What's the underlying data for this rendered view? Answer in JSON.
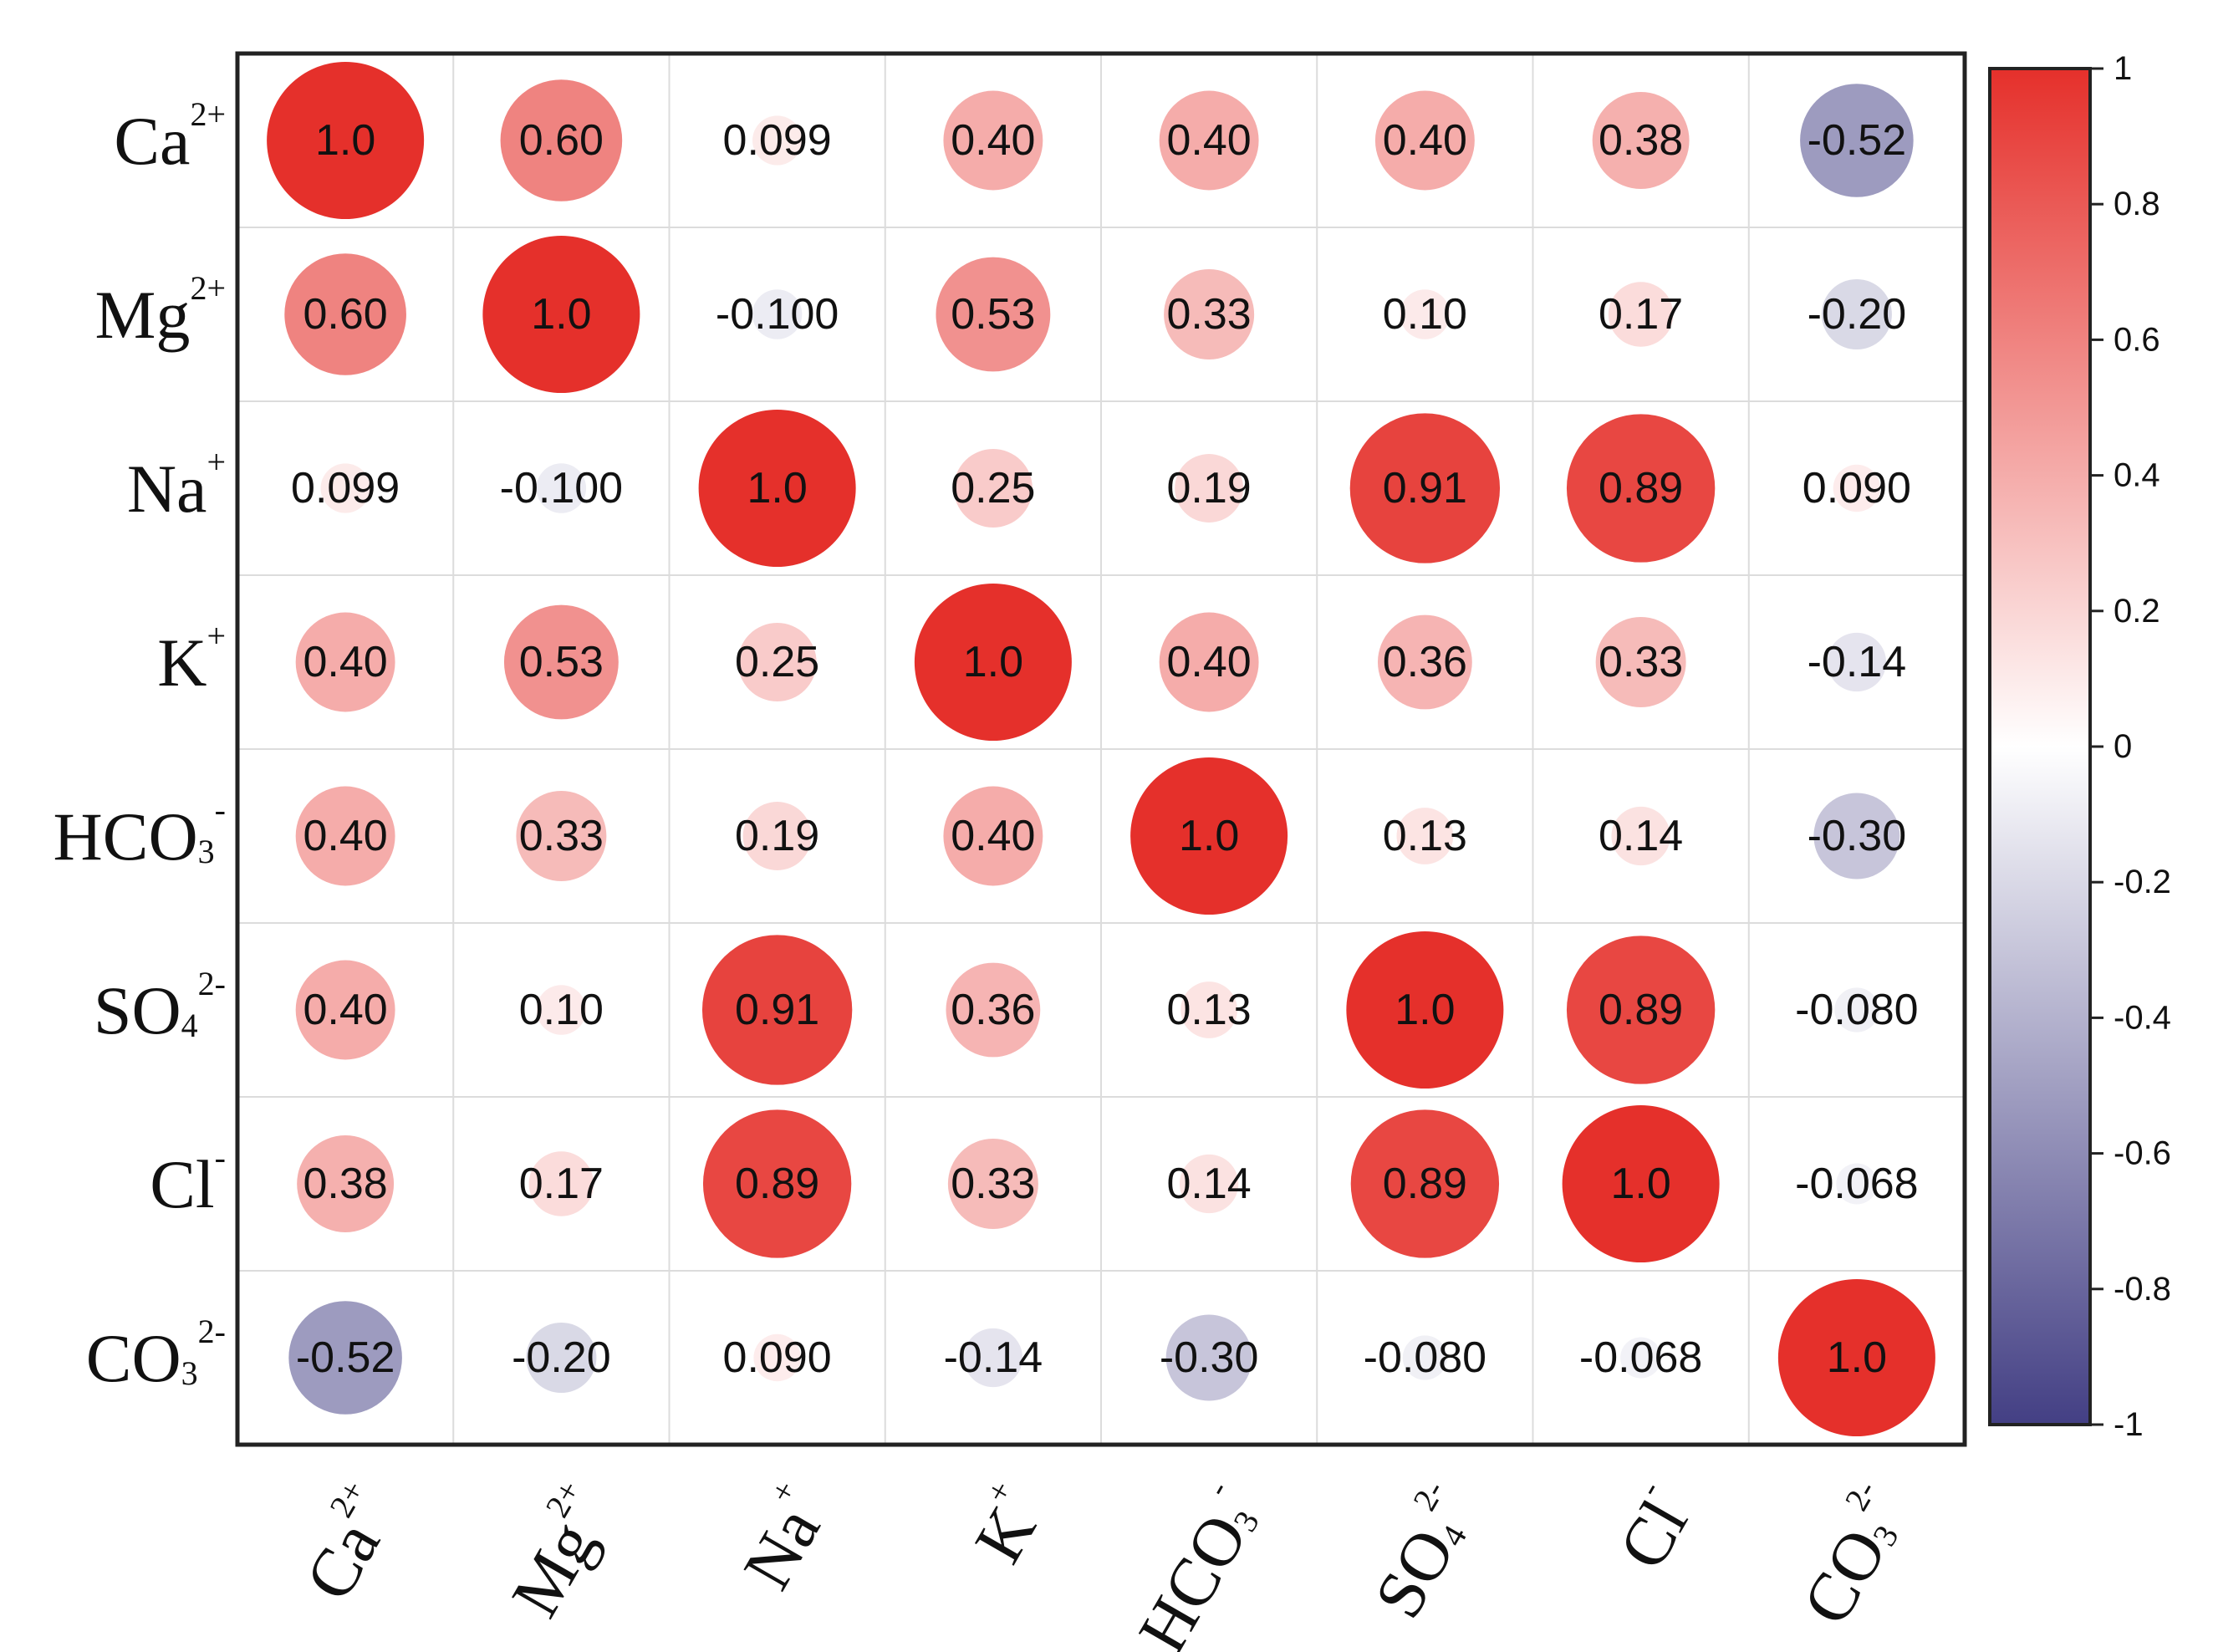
{
  "chart_data": {
    "type": "heatmap",
    "subtype": "correlation-circle-matrix",
    "variables": [
      {
        "base": "Ca",
        "sub": "",
        "sup": "2+"
      },
      {
        "base": "Mg",
        "sub": "",
        "sup": "2+"
      },
      {
        "base": "Na",
        "sub": "",
        "sup": "+"
      },
      {
        "base": "K",
        "sub": "",
        "sup": "+"
      },
      {
        "base": "HCO",
        "sub": "3",
        "sup": "-"
      },
      {
        "base": "SO",
        "sub": "4",
        "sup": "2-"
      },
      {
        "base": "Cl",
        "sub": "",
        "sup": "-"
      },
      {
        "base": "CO",
        "sub": "3",
        "sup": "2-"
      }
    ],
    "matrix": [
      [
        1.0,
        0.6,
        0.099,
        0.4,
        0.4,
        0.4,
        0.38,
        -0.52
      ],
      [
        0.6,
        1.0,
        -0.1,
        0.53,
        0.33,
        0.1,
        0.17,
        -0.2
      ],
      [
        0.099,
        -0.1,
        1.0,
        0.25,
        0.19,
        0.91,
        0.89,
        0.09
      ],
      [
        0.4,
        0.53,
        0.25,
        1.0,
        0.4,
        0.36,
        0.33,
        -0.14
      ],
      [
        0.4,
        0.33,
        0.19,
        0.4,
        1.0,
        0.13,
        0.14,
        -0.3
      ],
      [
        0.4,
        0.1,
        0.91,
        0.36,
        0.13,
        1.0,
        0.89,
        -0.08
      ],
      [
        0.38,
        0.17,
        0.89,
        0.33,
        0.14,
        0.89,
        1.0,
        -0.068
      ],
      [
        -0.52,
        -0.2,
        0.09,
        -0.14,
        -0.3,
        -0.08,
        -0.068,
        1.0
      ]
    ],
    "labels": [
      [
        "1.0",
        "0.60",
        "0.099",
        "0.40",
        "0.40",
        "0.40",
        "0.38",
        "-0.52"
      ],
      [
        "0.60",
        "1.0",
        "-0.100",
        "0.53",
        "0.33",
        "0.10",
        "0.17",
        "-0.20"
      ],
      [
        "0.099",
        "-0.100",
        "1.0",
        "0.25",
        "0.19",
        "0.91",
        "0.89",
        "0.090"
      ],
      [
        "0.40",
        "0.53",
        "0.25",
        "1.0",
        "0.40",
        "0.36",
        "0.33",
        "-0.14"
      ],
      [
        "0.40",
        "0.33",
        "0.19",
        "0.40",
        "1.0",
        "0.13",
        "0.14",
        "-0.30"
      ],
      [
        "0.40",
        "0.10",
        "0.91",
        "0.36",
        "0.13",
        "1.0",
        "0.89",
        "-0.080"
      ],
      [
        "0.38",
        "0.17",
        "0.89",
        "0.33",
        "0.14",
        "0.89",
        "1.0",
        "-0.068"
      ],
      [
        "-0.52",
        "-0.20",
        "0.090",
        "-0.14",
        "-0.30",
        "-0.080",
        "-0.068",
        "1.0"
      ]
    ],
    "colorbar": {
      "range": [
        -1,
        1
      ],
      "ticks": [
        {
          "value": 1,
          "label": "1"
        },
        {
          "value": 0.8,
          "label": "0.8"
        },
        {
          "value": 0.6,
          "label": "0.6"
        },
        {
          "value": 0.4,
          "label": "0.4"
        },
        {
          "value": 0.2,
          "label": "0.2"
        },
        {
          "value": 0,
          "label": "0"
        },
        {
          "value": -0.2,
          "label": "-0.2"
        },
        {
          "value": -0.4,
          "label": "-0.4"
        },
        {
          "value": -0.6,
          "label": "-0.6"
        },
        {
          "value": -0.8,
          "label": "-0.8"
        },
        {
          "value": -1,
          "label": "-1"
        }
      ],
      "colors": {
        "positive": "#e5302b",
        "neutral": "#ffffff",
        "negative": "#433f84"
      }
    },
    "grid": true,
    "legend": "right"
  }
}
